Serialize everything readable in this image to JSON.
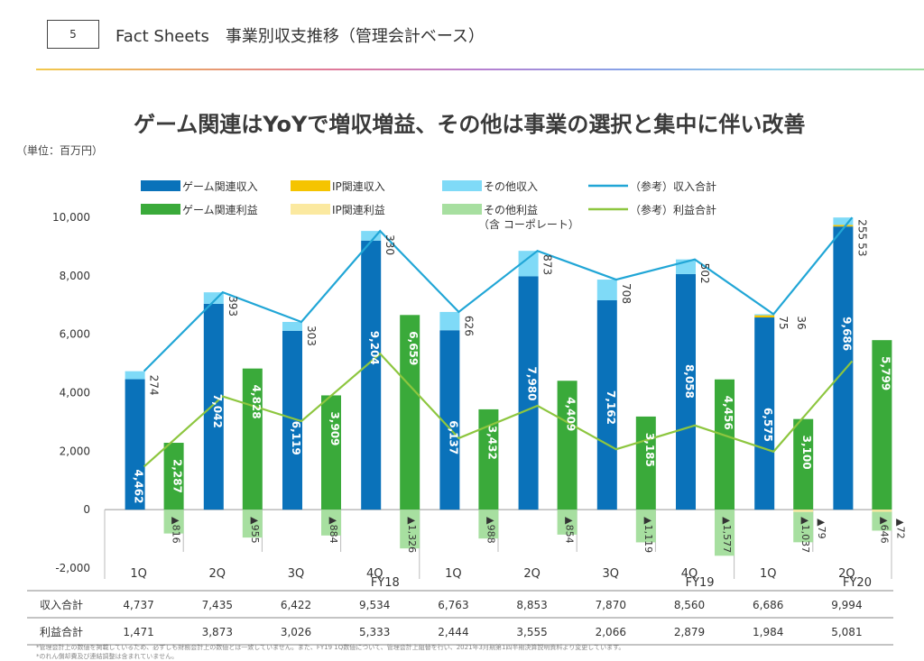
{
  "header": {
    "page_number": "5",
    "title": "Fact Sheets　事業別収支推移（管理会計ベース）"
  },
  "headline": "ゲーム関連はYoYで増収増益、その他は事業の選択と集中に伴い改善",
  "unit_label": "（単位：百万円）",
  "colors": {
    "game_revenue": "#0a72ba",
    "ip_revenue": "#f5c400",
    "other_revenue": "#7fdaf7",
    "revenue_total_line": "#21a6d6",
    "game_profit": "#3aaa3a",
    "ip_profit": "#fbe9a0",
    "other_profit": "#a7dfa0",
    "profit_total_line": "#8dc63f"
  },
  "chart_data": {
    "type": "bar",
    "title": "ゲーム関連はYoYで増収増益、その他は事業の選択と集中に伴い改善",
    "ylabel": "（単位：百万円）",
    "ylim": [
      -2000,
      10000
    ],
    "yticks": [
      "10,000",
      "8,000",
      "6,000",
      "4,000",
      "2,000",
      "0",
      "-2,000"
    ],
    "ytick_values": [
      10000,
      8000,
      6000,
      4000,
      2000,
      0,
      -2000
    ],
    "categories": [
      "1Q",
      "2Q",
      "3Q",
      "4Q",
      "1Q",
      "2Q",
      "3Q",
      "4Q",
      "1Q",
      "2Q"
    ],
    "fiscal_years": [
      {
        "label": "FY18",
        "from": 0,
        "to": 3
      },
      {
        "label": "FY19",
        "from": 4,
        "to": 7
      },
      {
        "label": "FY20",
        "from": 8,
        "to": 9
      }
    ],
    "legend": [
      {
        "key": "game_revenue",
        "label": "ゲーム関連収入",
        "kind": "box"
      },
      {
        "key": "ip_revenue",
        "label": "IP関連収入",
        "kind": "box"
      },
      {
        "key": "other_revenue",
        "label": "その他収入",
        "kind": "box"
      },
      {
        "key": "revenue_total_line",
        "label": "（参考）収入合計",
        "kind": "line"
      },
      {
        "key": "game_profit",
        "label": "ゲーム関連利益",
        "kind": "box"
      },
      {
        "key": "ip_profit",
        "label": "IP関連利益",
        "kind": "box"
      },
      {
        "key": "other_profit",
        "label": "その他利益",
        "label2": "（含 コーポレート）",
        "kind": "box"
      },
      {
        "key": "profit_total_line",
        "label": "（参考）利益合計",
        "kind": "line"
      }
    ],
    "series": [
      {
        "name": "ゲーム関連収入",
        "values": [
          4462,
          7042,
          6119,
          9204,
          6137,
          7980,
          7162,
          8058,
          6575,
          9686
        ],
        "labels": [
          "4,462",
          "7,042",
          "6,119",
          "9,204",
          "6,137",
          "7,980",
          "7,162",
          "8,058",
          "6,575",
          "9,686"
        ]
      },
      {
        "name": "IP関連収入",
        "values": [
          0,
          0,
          0,
          0,
          0,
          0,
          0,
          0,
          75,
          53
        ],
        "labels": [
          "",
          "",
          "",
          "",
          "",
          "",
          "",
          "",
          "75",
          "53"
        ]
      },
      {
        "name": "その他収入",
        "values": [
          274,
          393,
          303,
          330,
          626,
          873,
          708,
          502,
          36,
          255
        ],
        "labels": [
          "274",
          "393",
          "303",
          "330",
          "626",
          "873",
          "708",
          "502",
          "36",
          "255"
        ]
      },
      {
        "name": "ゲーム関連利益",
        "values": [
          2287,
          4828,
          3909,
          6659,
          3432,
          4409,
          3185,
          4456,
          3100,
          5799
        ],
        "labels": [
          "2,287",
          "4,828",
          "3,909",
          "6,659",
          "3,432",
          "4,409",
          "3,185",
          "4,456",
          "3,100",
          "5,799"
        ]
      },
      {
        "name": "IP関連利益",
        "values": [
          0,
          0,
          0,
          0,
          0,
          0,
          0,
          0,
          -79,
          -72
        ],
        "labels": [
          "",
          "",
          "",
          "",
          "",
          "",
          "",
          "",
          "▲79",
          "▲72"
        ]
      },
      {
        "name": "その他利益（含 コーポレート）",
        "values": [
          -816,
          -955,
          -884,
          -1326,
          -988,
          -854,
          -1119,
          -1577,
          -1037,
          -646
        ],
        "labels": [
          "▲816",
          "▲955",
          "▲884",
          "▲1,326",
          "▲988",
          "▲854",
          "▲1,119",
          "▲1,577",
          "▲1,037",
          "▲646"
        ]
      },
      {
        "name": "（参考）収入合計",
        "values": [
          4737,
          7435,
          6422,
          9534,
          6763,
          8853,
          7870,
          8560,
          6686,
          9994
        ]
      },
      {
        "name": "（参考）利益合計",
        "values": [
          1471,
          3873,
          3026,
          5333,
          2444,
          3555,
          2066,
          2879,
          1984,
          5081
        ]
      }
    ],
    "table": {
      "rows": [
        {
          "label": "収入合計",
          "cells": [
            "4,737",
            "7,435",
            "6,422",
            "9,534",
            "6,763",
            "8,853",
            "7,870",
            "8,560",
            "6,686",
            "9,994"
          ]
        },
        {
          "label": "利益合計",
          "cells": [
            "1,471",
            "3,873",
            "3,026",
            "5,333",
            "2,444",
            "3,555",
            "2,066",
            "2,879",
            "1,984",
            "5,081"
          ]
        }
      ]
    }
  },
  "footnotes": [
    "*管理会計上の数値を掲載しているため、必ずしも財務会計上の数値とは一致していません。また、FY19 1Q数値について、管理会計上組替を行い、2021年3月期第1四半期決算説明資料より変更しています。",
    "*のれん償却費及び連結調整は含まれていません。"
  ]
}
